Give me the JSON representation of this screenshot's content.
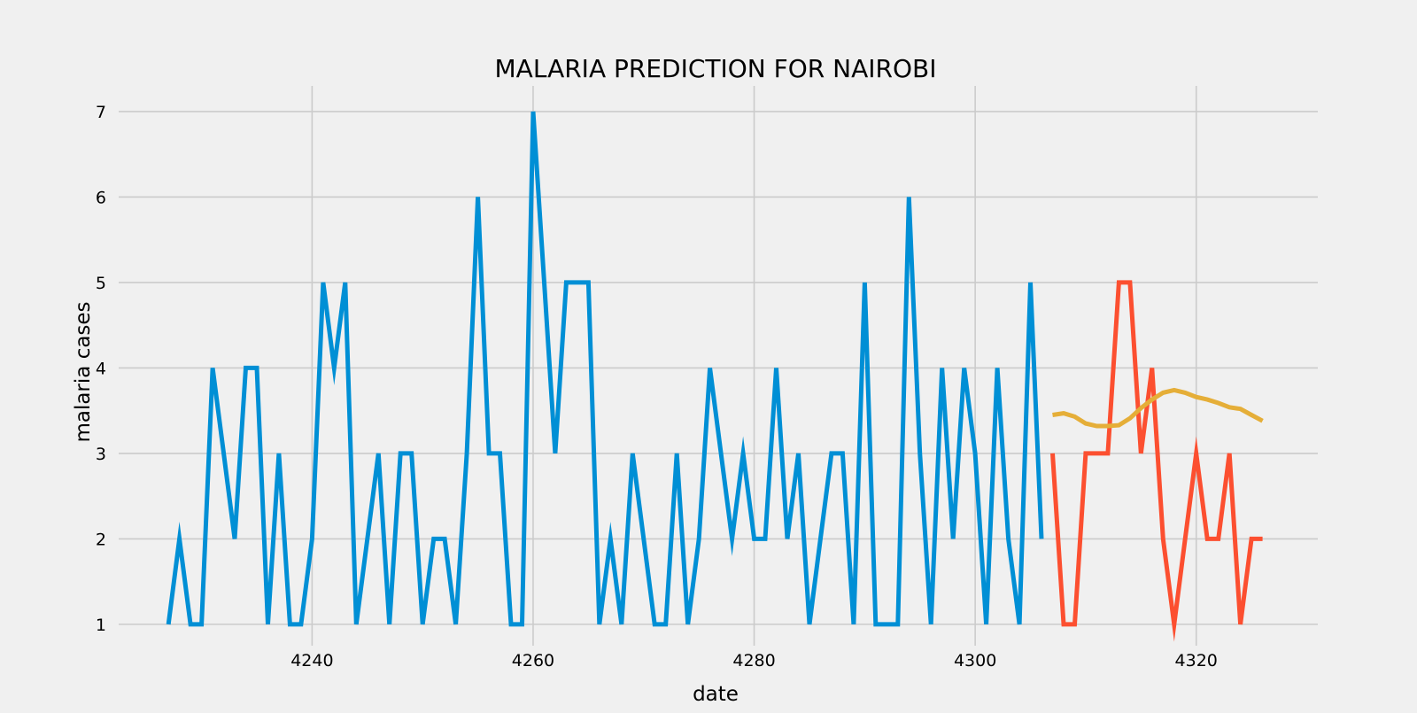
{
  "chart_data": {
    "type": "line",
    "title": "MALARIA PREDICTION FOR NAIROBI",
    "xlabel": "date",
    "ylabel": "malaria cases",
    "xlim": [
      4222.5,
      4331
    ],
    "ylim": [
      0.75,
      7.3
    ],
    "xticks": [
      4240,
      4260,
      4280,
      4300,
      4320
    ],
    "yticks": [
      1,
      2,
      3,
      4,
      5,
      6,
      7
    ],
    "grid": true,
    "legend": "none",
    "series": [
      {
        "color": "#008fd5",
        "x": [
          4227,
          4228,
          4229,
          4230,
          4231,
          4232,
          4233,
          4234,
          4235,
          4236,
          4237,
          4238,
          4239,
          4240,
          4241,
          4242,
          4243,
          4244,
          4245,
          4246,
          4247,
          4248,
          4249,
          4250,
          4251,
          4252,
          4253,
          4254,
          4255,
          4256,
          4257,
          4258,
          4259,
          4260,
          4261,
          4262,
          4263,
          4264,
          4265,
          4266,
          4267,
          4268,
          4269,
          4270,
          4271,
          4272,
          4273,
          4274,
          4275,
          4276,
          4277,
          4278,
          4279,
          4280,
          4281,
          4282,
          4283,
          4284,
          4285,
          4286,
          4287,
          4288,
          4289,
          4290,
          4291,
          4292,
          4293,
          4294,
          4295,
          4296,
          4297,
          4298,
          4299,
          4300,
          4301,
          4302,
          4303,
          4304,
          4305,
          4306
        ],
        "y": [
          1,
          2,
          1,
          1,
          4,
          3,
          2,
          4,
          4,
          1,
          3,
          1,
          1,
          2,
          5,
          4,
          5,
          1,
          2,
          3,
          1,
          3,
          3,
          1,
          2,
          2,
          1,
          3,
          6,
          3,
          3,
          1,
          1,
          7,
          5,
          3,
          5,
          5,
          5,
          1,
          2,
          1,
          3,
          2,
          1,
          1,
          3,
          1,
          2,
          4,
          3,
          2,
          3,
          2,
          2,
          4,
          2,
          3,
          1,
          2,
          3,
          3,
          1,
          5,
          1,
          1,
          1,
          6,
          3,
          1,
          4,
          2,
          4,
          3,
          1,
          4,
          2,
          1,
          5,
          2
        ]
      },
      {
        "color": "#fc4f30",
        "x": [
          4307,
          4308,
          4309,
          4310,
          4311,
          4312,
          4313,
          4314,
          4315,
          4316,
          4317,
          4318,
          4319,
          4320,
          4321,
          4322,
          4323,
          4324,
          4325,
          4326
        ],
        "y": [
          3,
          1,
          1,
          3,
          3,
          3,
          5,
          5,
          3,
          4,
          2,
          1,
          2,
          3,
          2,
          2,
          3,
          1,
          2,
          2
        ]
      },
      {
        "color": "#e5ae38",
        "x": [
          4307,
          4308,
          4309,
          4310,
          4311,
          4312,
          4313,
          4314,
          4315,
          4316,
          4317,
          4318,
          4319,
          4320,
          4321,
          4322,
          4323,
          4324,
          4325,
          4326
        ],
        "y": [
          3.45,
          3.47,
          3.43,
          3.35,
          3.32,
          3.32,
          3.33,
          3.41,
          3.53,
          3.63,
          3.71,
          3.74,
          3.71,
          3.66,
          3.63,
          3.59,
          3.54,
          3.52,
          3.45,
          3.38
        ]
      }
    ]
  }
}
